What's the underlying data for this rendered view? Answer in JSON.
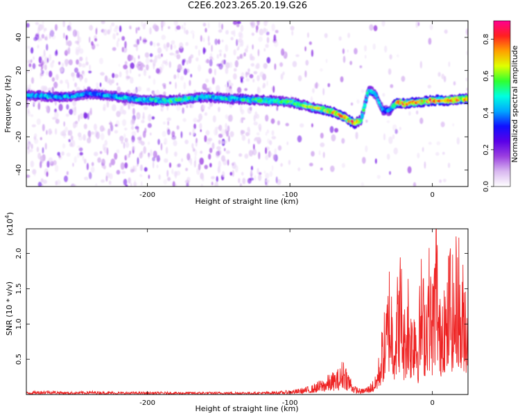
{
  "title": "C2E6.2023.265.20.19.G26",
  "colorbar": {
    "label": "Normalized spectral amplitude",
    "ticks": [
      "0.0",
      "0.2",
      "0.4",
      "0.6",
      "0.8"
    ],
    "tick_values": [
      0,
      0.2,
      0.4,
      0.6,
      0.8
    ],
    "range": [
      0,
      0.9
    ],
    "colormap": [
      "#ffffff",
      "#d9b8f0",
      "#9b40e0",
      "#5a00e8",
      "#1010ff",
      "#00a8ff",
      "#00ffe0",
      "#30ff30",
      "#e0ff00",
      "#ffa000",
      "#ff2020",
      "#ff0090"
    ]
  },
  "chart_data": [
    {
      "type": "heatmap",
      "xlabel": "Height of straight line (km)",
      "ylabel": "Frequency (Hz)",
      "xlim": [
        -285,
        25
      ],
      "ylim": [
        -50,
        50
      ],
      "xticks": [
        -200,
        -100,
        0
      ],
      "xtick_labels": [
        "-200",
        "-100",
        "0"
      ],
      "yticks": [
        -40,
        -20,
        0,
        20,
        40
      ],
      "ytick_labels": [
        "-40",
        "-20",
        "0",
        "20",
        "40"
      ],
      "ridge": {
        "name": "main signal band",
        "x": [
          -285,
          -260,
          -240,
          -220,
          -200,
          -180,
          -160,
          -140,
          -120,
          -100,
          -90,
          -80,
          -70,
          -60,
          -55,
          -50,
          -45,
          -40,
          -35,
          -30,
          -25,
          -20,
          -10,
          0,
          10,
          25
        ],
        "y": [
          5,
          4,
          6,
          4,
          2,
          2,
          4,
          3,
          2,
          1,
          -1,
          -3,
          -5,
          -9,
          -12,
          -10,
          8,
          6,
          -4,
          -4,
          1,
          0,
          1,
          2,
          2,
          3
        ],
        "amplitude": [
          0.45,
          0.45,
          0.4,
          0.45,
          0.5,
          0.55,
          0.5,
          0.5,
          0.55,
          0.55,
          0.6,
          0.7,
          0.75,
          0.8,
          0.85,
          0.6,
          0.5,
          0.45,
          0.4,
          0.4,
          0.75,
          0.8,
          0.75,
          0.85,
          0.8,
          0.75
        ]
      }
    },
    {
      "type": "line",
      "xlabel": "Height of straight line (km)",
      "ylabel": "SNR (10 * v/v)",
      "y_multiplier": "(x10",
      "y_multiplier_exp": "4",
      "xlim": [
        -285,
        25
      ],
      "ylim": [
        0,
        2.35
      ],
      "xticks": [
        -200,
        -100,
        0
      ],
      "xtick_labels": [
        "-200",
        "-100",
        "0"
      ],
      "yticks": [
        0.5,
        1.0,
        1.5,
        2.0
      ],
      "ytick_labels": [
        "0.5",
        "1.0",
        "1.5",
        "2.0"
      ],
      "series": [
        {
          "color": "#ee2222",
          "x": [
            -285,
            -270,
            -255,
            -240,
            -220,
            -200,
            -180,
            -160,
            -140,
            -120,
            -105,
            -95,
            -85,
            -80,
            -75,
            -70,
            -65,
            -62,
            -60,
            -57,
            -55,
            -50,
            -45,
            -40,
            -37,
            -35,
            -32,
            -30,
            -27,
            -25,
            -22,
            -20,
            -17,
            -15,
            -12,
            -10,
            -8,
            -5,
            -3,
            0,
            3,
            5,
            8,
            10,
            12,
            15,
            18,
            20,
            22,
            25
          ],
          "y": [
            0.03,
            0.05,
            0.03,
            0.04,
            0.03,
            0.03,
            0.03,
            0.03,
            0.03,
            0.03,
            0.04,
            0.06,
            0.1,
            0.15,
            0.2,
            0.25,
            0.3,
            0.45,
            0.3,
            0.2,
            0.1,
            0.06,
            0.1,
            0.2,
            0.5,
            0.8,
            1.1,
            1.6,
            1.0,
            1.3,
            1.7,
            0.9,
            1.5,
            1.0,
            1.4,
            0.8,
            1.6,
            1.2,
            1.8,
            1.3,
            2.3,
            1.0,
            1.7,
            1.1,
            1.9,
            1.4,
            2.1,
            1.2,
            1.6,
            1.4
          ]
        }
      ]
    }
  ]
}
